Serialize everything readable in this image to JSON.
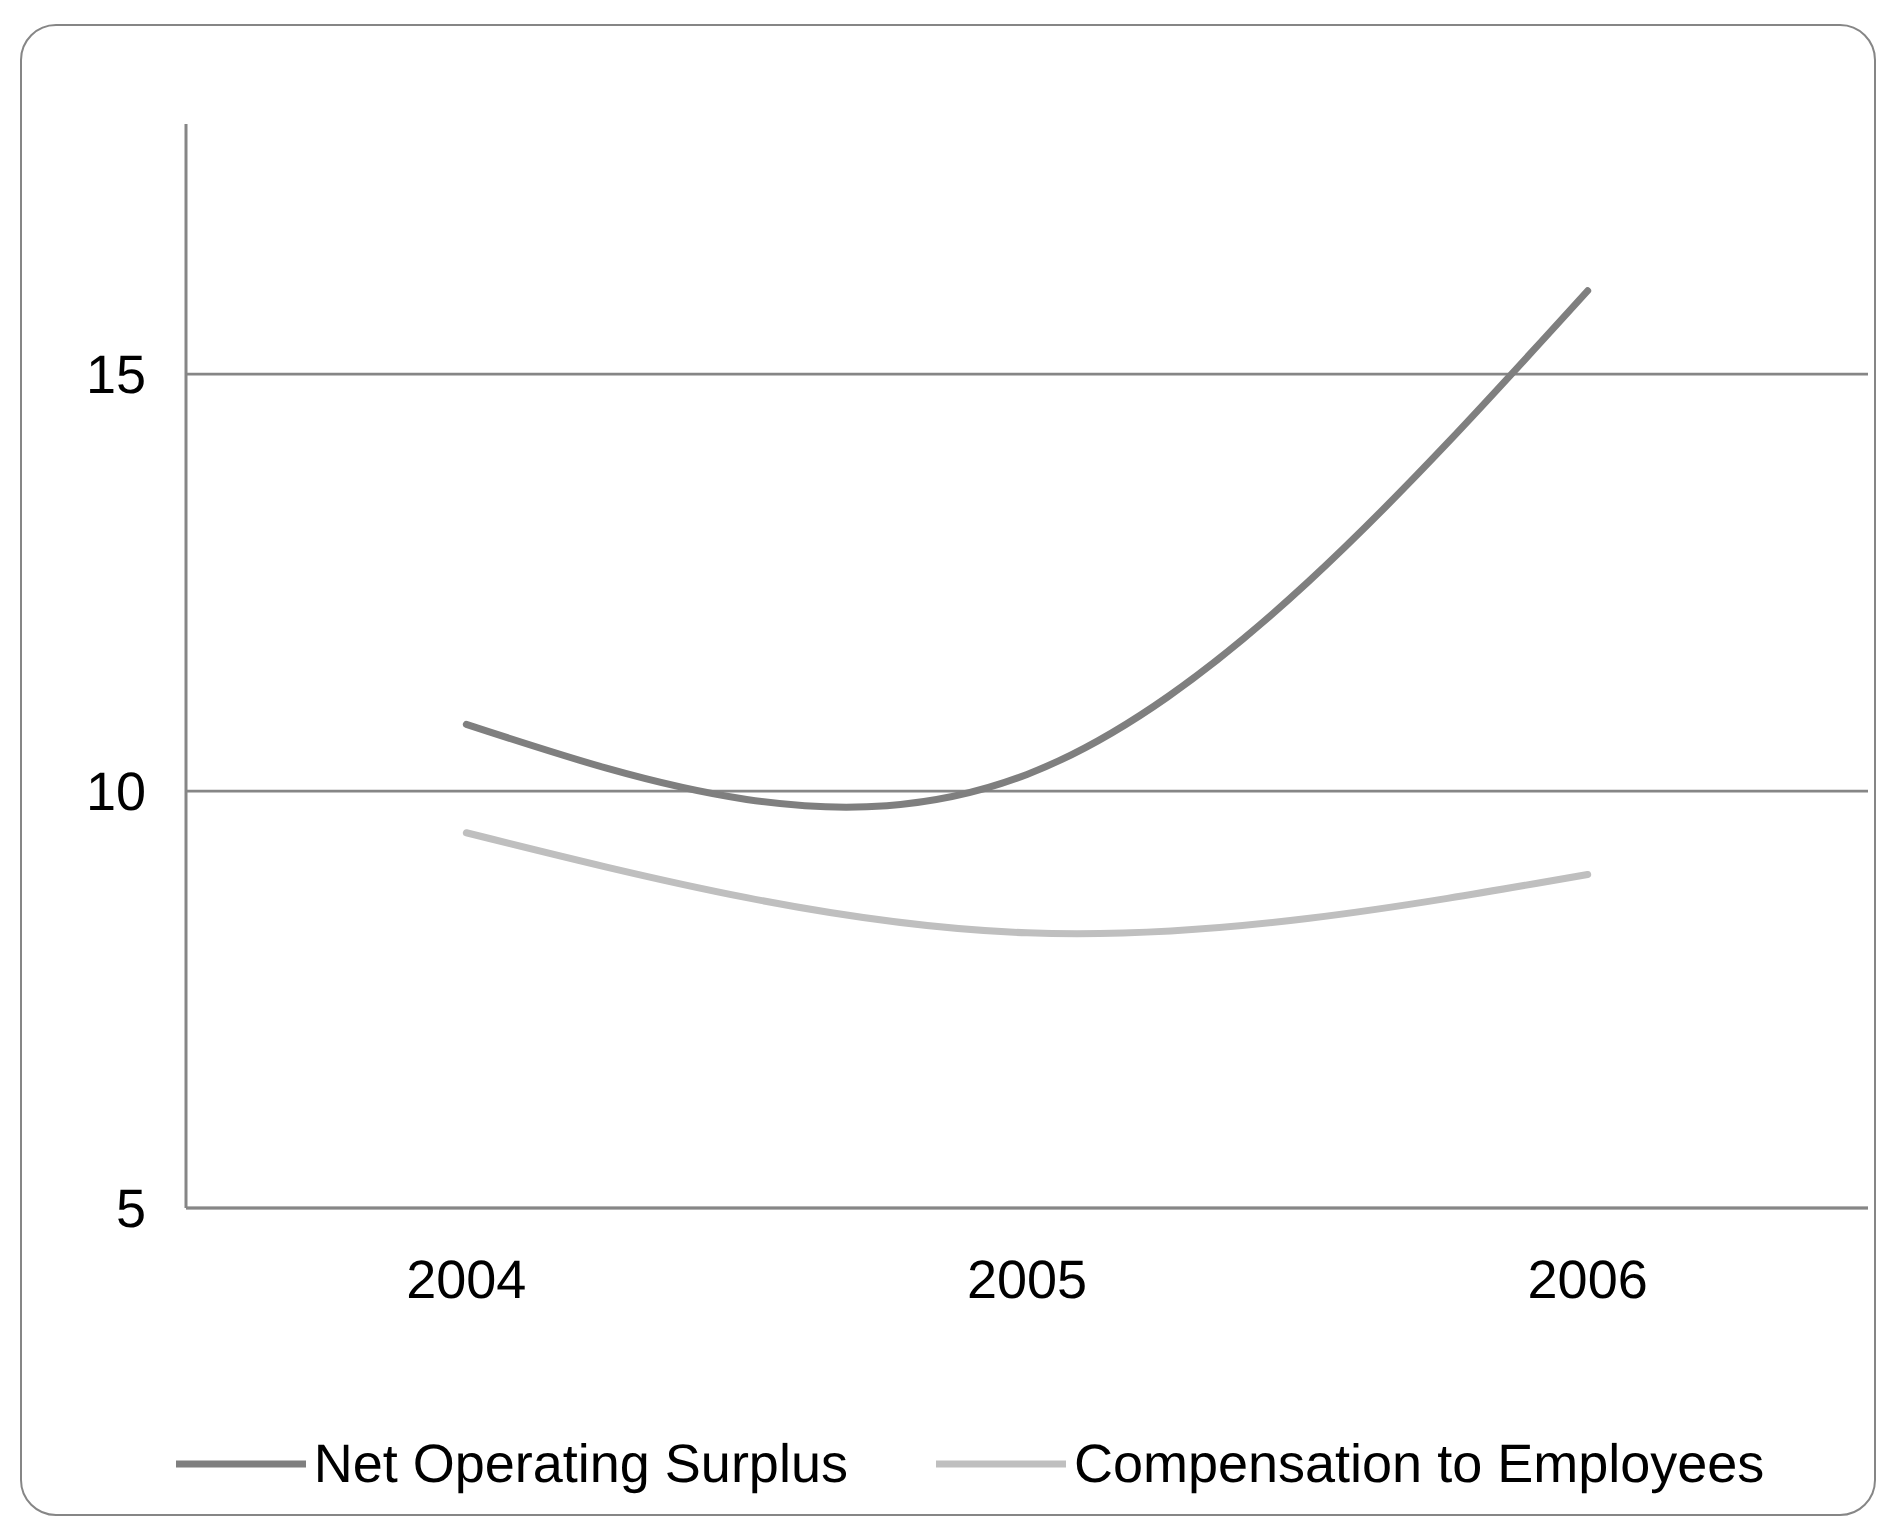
{
  "chart_data": {
    "type": "line",
    "categories": [
      "2004",
      "2005",
      "2006"
    ],
    "series": [
      {
        "name": "Net Operating Surplus",
        "color": "#7f7f7f",
        "values": [
          10.8,
          10.2,
          16
        ]
      },
      {
        "name": "Compensation to Employees",
        "color": "#bfbfbf",
        "values": [
          9.5,
          8.3,
          9.0
        ]
      }
    ],
    "ylim": [
      5,
      18
    ],
    "yticks": [
      5,
      10,
      15
    ],
    "grid": "y",
    "legend": "bottom",
    "marker": "none"
  }
}
